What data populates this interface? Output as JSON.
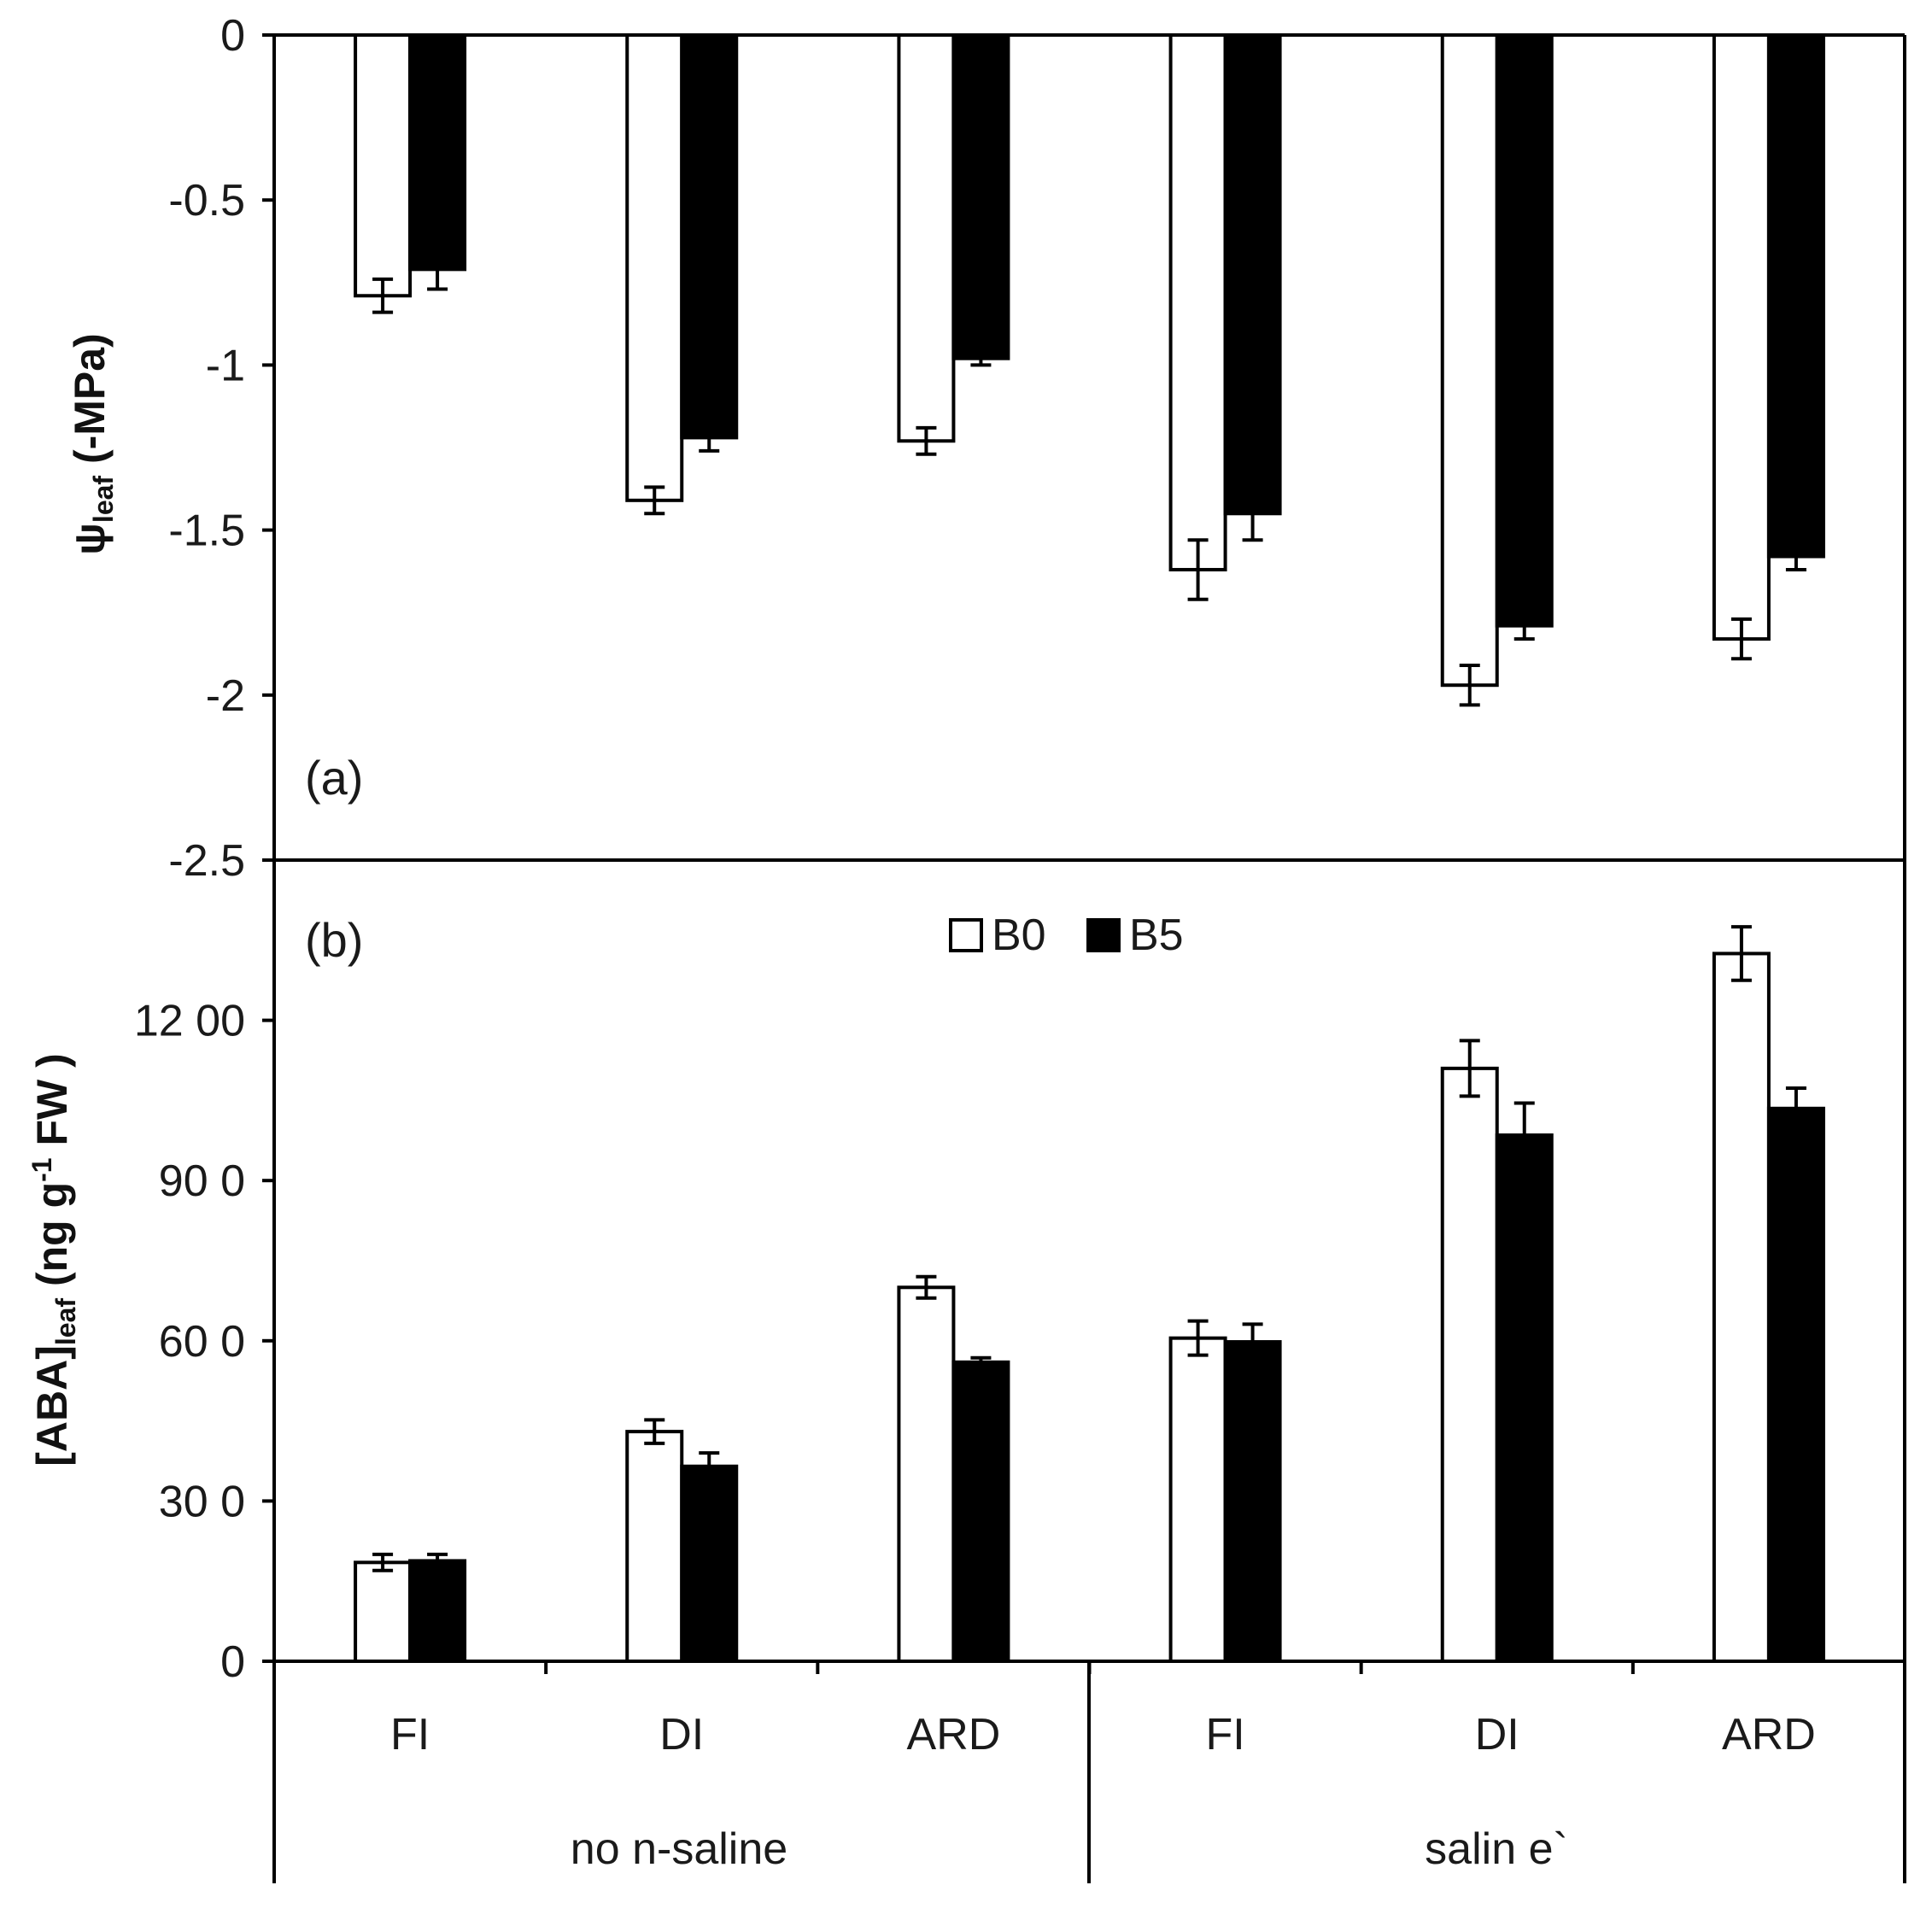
{
  "chart_data": [
    {
      "type": "bar",
      "panel_label": "(a)",
      "ylabel": {
        "symbol": "ψ",
        "subscript": "leaf",
        "unit": " (-MPa)"
      },
      "ylim": [
        -2.5,
        0
      ],
      "yticks": [
        0,
        -0.5,
        -1,
        -1.5,
        -2,
        -2.5
      ],
      "ytick_labels": [
        "0",
        "-0.5",
        "-1",
        "-1.5",
        "-2",
        "-2.5"
      ],
      "categories": [
        "FI",
        "DI",
        "ARD",
        "FI",
        "DI",
        "ARD"
      ],
      "series": [
        {
          "name": "B0",
          "color": "#ffffff",
          "values": [
            -0.79,
            -1.41,
            -1.23,
            -1.62,
            -1.97,
            -1.83
          ],
          "errors": [
            0.05,
            0.04,
            0.04,
            0.09,
            0.06,
            0.06
          ]
        },
        {
          "name": "B5",
          "color": "#000000",
          "values": [
            -0.71,
            -1.22,
            -0.98,
            -1.45,
            -1.79,
            -1.58
          ],
          "errors": [
            0.06,
            0.04,
            0.02,
            0.08,
            0.04,
            0.04
          ]
        }
      ]
    },
    {
      "type": "bar",
      "panel_label": "(b)",
      "ylabel": {
        "prefix": "[ABA]",
        "subscript": "leaf",
        "middle": " (ng g",
        "superscript": "-1",
        "suffix": " FW )"
      },
      "ylim": [
        0,
        1500
      ],
      "yticks": [
        0,
        300,
        600,
        900,
        1200
      ],
      "ytick_labels": [
        "0",
        "30 0",
        "60 0",
        "90 0",
        "12 00"
      ],
      "categories": [
        "FI",
        "DI",
        "ARD",
        "FI",
        "DI",
        "ARD"
      ],
      "series": [
        {
          "name": "B0",
          "color": "#ffffff",
          "values": [
            185,
            430,
            700,
            605,
            1110,
            1325
          ],
          "errors": [
            15,
            22,
            20,
            32,
            52,
            50
          ]
        },
        {
          "name": "B5",
          "color": "#000000",
          "values": [
            188,
            365,
            560,
            598,
            985,
            1035
          ],
          "errors": [
            12,
            25,
            8,
            33,
            60,
            38
          ]
        }
      ],
      "legend": [
        "B0",
        "B5"
      ]
    }
  ],
  "groups": [
    "no n-saline",
    "salin e`"
  ]
}
